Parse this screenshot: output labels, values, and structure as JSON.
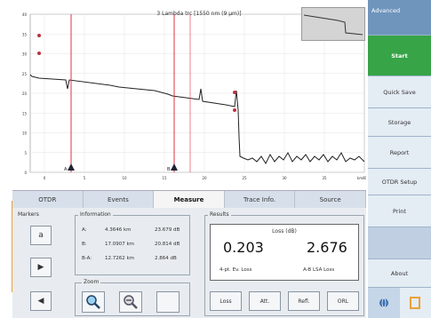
{
  "chart": {
    "title": "3 Lambda trc [1550 nm (9 µm)]",
    "y_ticks": [
      "40",
      "35",
      "30",
      "25",
      "20",
      "15",
      "10",
      "5",
      "0"
    ],
    "x_ticks": [
      "0",
      "5",
      "10",
      "15",
      "20",
      "25",
      "30",
      "35",
      "40"
    ],
    "x_unit": "km",
    "markers": [
      "A",
      "B"
    ]
  },
  "tabs": [
    "OTDR",
    "Events",
    "Measure",
    "Trace Info.",
    "Source"
  ],
  "active_tab": "Measure",
  "markers_panel": {
    "title": "Markers",
    "buttons": [
      "a",
      "▶",
      "◀"
    ]
  },
  "information": {
    "title": "Information",
    "rows": [
      {
        "label": "A:",
        "dist": "4.3646 km",
        "val": "23.679 dB"
      },
      {
        "label": "B:",
        "dist": "17.0907 km",
        "val": "20.814 dB"
      },
      {
        "label": "B-A:",
        "dist": "12.7262 km",
        "val": "2.864 dB"
      }
    ]
  },
  "zoom": {
    "title": "Zoom"
  },
  "results": {
    "title": "Results",
    "header": "Loss (dB)",
    "value_left": "0.203",
    "value_right": "2.676",
    "label_left": "4-pt. Ev. Loss",
    "label_right": "A-B LSA Loss",
    "buttons": [
      "Loss",
      "Att.",
      "Refl.",
      "ORL"
    ]
  },
  "menu": {
    "header": "Advanced",
    "items": [
      "Start",
      "Quick Save",
      "Storage",
      "Report",
      "OTDR Setup",
      "Print",
      "",
      "About"
    ]
  },
  "colors": {
    "trace": "#222222",
    "marker_line": "#e03040",
    "start_green": "#37a447",
    "menu_blue": "#c5d6e8",
    "menu_header": "#6f95bd",
    "accent_orange": "#e8a13a"
  }
}
